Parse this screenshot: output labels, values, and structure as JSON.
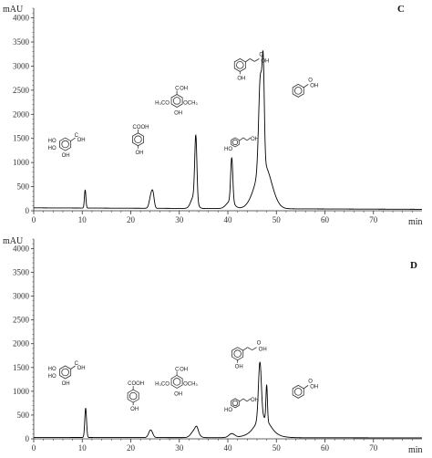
{
  "chart_data": [
    {
      "type": "line",
      "panel_label": "C",
      "ylabel": "mAU",
      "xlabel": "min",
      "xlim": [
        0,
        80
      ],
      "ylim": [
        0,
        4200
      ],
      "x_ticks": [
        "0",
        "10",
        "20",
        "30",
        "40",
        "50",
        "60",
        "70"
      ],
      "y_ticks": [
        "0",
        "500",
        "1000",
        "1500",
        "2000",
        "2500",
        "3000",
        "3500",
        "4000"
      ],
      "baseline_start": 60,
      "baseline_end": 30,
      "peaks": [
        {
          "x": 10.6,
          "height": 380,
          "width": 0.15
        },
        {
          "x": 24.2,
          "height": 280,
          "width": 0.35
        },
        {
          "x": 24.6,
          "height": 200,
          "width": 0.25
        },
        {
          "x": 33.4,
          "height": 1330,
          "width": 0.22
        },
        {
          "x": 33.0,
          "height": 250,
          "width": 0.6
        },
        {
          "x": 40.8,
          "height": 920,
          "width": 0.22
        },
        {
          "x": 40.5,
          "height": 150,
          "width": 0.8
        },
        {
          "x": 46.7,
          "height": 1900,
          "width": 0.35
        },
        {
          "x": 47.3,
          "height": 1850,
          "width": 0.22
        },
        {
          "x": 47.0,
          "height": 650,
          "width": 1.6
        },
        {
          "x": 48.0,
          "height": 320,
          "width": 1.4
        }
      ],
      "structures": [
        {
          "x": 6.5,
          "y": 1380,
          "kind": "gallic"
        },
        {
          "x": 21.5,
          "y": 1480,
          "kind": "phba"
        },
        {
          "x": 29.5,
          "y": 2280,
          "kind": "syringic"
        },
        {
          "x": 41.5,
          "y": 1420,
          "kind": "pcoumaric"
        },
        {
          "x": 42.5,
          "y": 3020,
          "kind": "ocoumaric"
        },
        {
          "x": 54.5,
          "y": 2490,
          "kind": "benzoic"
        }
      ]
    },
    {
      "type": "line",
      "panel_label": "D",
      "ylabel": "mAU",
      "xlabel": "min",
      "xlim": [
        0,
        80
      ],
      "ylim": [
        0,
        4200
      ],
      "x_ticks": [
        "0",
        "10",
        "20",
        "30",
        "40",
        "50",
        "60",
        "70"
      ],
      "y_ticks": [
        "0",
        "500",
        "1000",
        "1500",
        "2000",
        "2500",
        "3000",
        "3500",
        "4000"
      ],
      "baseline_start": 30,
      "baseline_end": 20,
      "peaks": [
        {
          "x": 10.7,
          "height": 620,
          "width": 0.18
        },
        {
          "x": 24.1,
          "height": 160,
          "width": 0.4
        },
        {
          "x": 33.2,
          "height": 160,
          "width": 0.7
        },
        {
          "x": 33.6,
          "height": 100,
          "width": 0.3
        },
        {
          "x": 40.8,
          "height": 80,
          "width": 0.6
        },
        {
          "x": 46.6,
          "height": 1200,
          "width": 0.3
        },
        {
          "x": 47.2,
          "height": 300,
          "width": 1.4
        },
        {
          "x": 48.0,
          "height": 750,
          "width": 0.15
        },
        {
          "x": 47.0,
          "height": 120,
          "width": 2.5
        }
      ],
      "structures": [
        {
          "x": 6.5,
          "y": 1400,
          "kind": "gallic"
        },
        {
          "x": 20.5,
          "y": 900,
          "kind": "phba"
        },
        {
          "x": 29.5,
          "y": 1200,
          "kind": "syringic"
        },
        {
          "x": 41.5,
          "y": 750,
          "kind": "pcoumaric"
        },
        {
          "x": 42.0,
          "y": 1790,
          "kind": "ocoumaric"
        },
        {
          "x": 54.5,
          "y": 990,
          "kind": "benzoic"
        }
      ]
    }
  ],
  "colors": {
    "trace": "#000000",
    "axis": "#333333"
  }
}
